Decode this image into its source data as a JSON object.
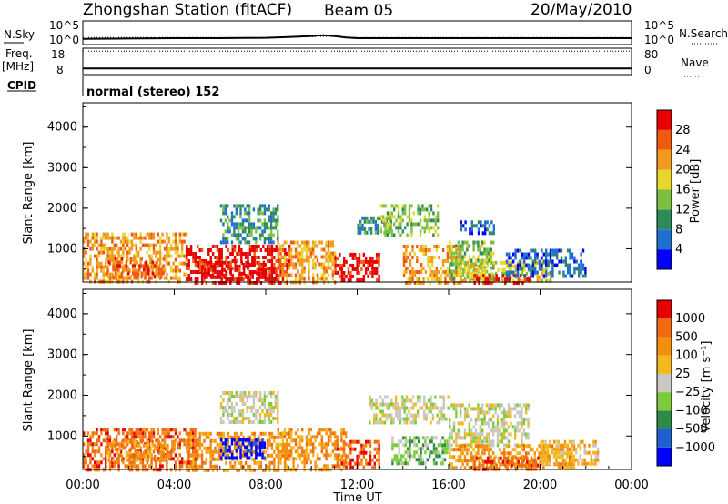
{
  "header": {
    "station": "Zhongshan Station (fitACF)",
    "beam": "Beam 05",
    "date": "20/May/2010"
  },
  "chart_data": [
    {
      "type": "line",
      "name": "noise-panel",
      "left_label": "N.Sky",
      "left_ticks": [
        "10^5",
        "10^0"
      ],
      "right_label": "N.Search",
      "right_ticks": [
        "10^5",
        "10^0"
      ],
      "x": [
        0,
        2,
        4,
        6,
        8,
        9,
        10,
        10.5,
        11,
        11.5,
        12,
        14,
        16,
        18,
        20,
        22,
        24
      ],
      "n_sky_log10": [
        0.8,
        0.9,
        1.0,
        1.0,
        1.1,
        1.3,
        1.6,
        1.8,
        1.6,
        1.2,
        1.0,
        1.0,
        1.0,
        1.0,
        1.0,
        1.0,
        1.0
      ],
      "n_search_log10": [
        1.2,
        1.2,
        1.2,
        1.2,
        1.2,
        1.3,
        1.4,
        1.5,
        1.4,
        1.3,
        1.2,
        1.2,
        1.2,
        1.2,
        1.2,
        1.2,
        1.2
      ]
    },
    {
      "type": "line",
      "name": "freq-nave-panel",
      "left_label": "Freq.",
      "left_unit": "[MHz]",
      "left_ticks": [
        "18",
        "8"
      ],
      "right_label": "Nave",
      "right_ticks": [
        "80",
        "0"
      ],
      "cpid_label": "CPID",
      "cpid_text": "normal (stereo) 152",
      "freq_mhz": 10,
      "nave": 79
    },
    {
      "type": "heatmap",
      "name": "power",
      "ylabel": "Slant Range [km]",
      "xlabel": "",
      "ylim": [
        180,
        4600
      ],
      "yticks": [
        1000,
        2000,
        3000,
        4000
      ],
      "xlim": [
        0,
        24
      ],
      "colorbar_label": "Power [dB]",
      "colorbar_ticks": [
        "4",
        "8",
        "12",
        "16",
        "20",
        "24",
        "28"
      ],
      "colors": [
        "#0000ff",
        "#1e6fd0",
        "#2f8a5a",
        "#7cc043",
        "#e9d62c",
        "#f29a1e",
        "#f05a10",
        "#e60000"
      ],
      "blobs": [
        {
          "t0": 0.0,
          "t1": 4.5,
          "r0": 200,
          "r1": 1400,
          "level": 5
        },
        {
          "t0": 1.0,
          "t1": 3.5,
          "r0": 300,
          "r1": 800,
          "level": 6
        },
        {
          "t0": 4.5,
          "t1": 9.0,
          "r0": 200,
          "r1": 1100,
          "level": 7
        },
        {
          "t0": 5.0,
          "t1": 8.0,
          "r0": 300,
          "r1": 700,
          "level": 7
        },
        {
          "t0": 6.0,
          "t1": 8.5,
          "r0": 1200,
          "r1": 2100,
          "level": 2
        },
        {
          "t0": 8.5,
          "t1": 11.0,
          "r0": 200,
          "r1": 1200,
          "level": 5
        },
        {
          "t0": 11.0,
          "t1": 13.0,
          "r0": 250,
          "r1": 900,
          "level": 7
        },
        {
          "t0": 12.0,
          "t1": 13.5,
          "r0": 1400,
          "r1": 1800,
          "level": 2
        },
        {
          "t0": 13.0,
          "t1": 15.5,
          "r0": 1300,
          "r1": 2100,
          "level": 3
        },
        {
          "t0": 14.0,
          "t1": 16.5,
          "r0": 200,
          "r1": 1100,
          "level": 5
        },
        {
          "t0": 16.0,
          "t1": 18.0,
          "r0": 300,
          "r1": 1200,
          "level": 3
        },
        {
          "t0": 16.5,
          "t1": 20.5,
          "r0": 200,
          "r1": 700,
          "level": 4
        },
        {
          "t0": 17.0,
          "t1": 19.5,
          "r0": 200,
          "r1": 380,
          "level": 7
        },
        {
          "t0": 18.5,
          "t1": 22.0,
          "r0": 300,
          "r1": 1000,
          "level": 1
        },
        {
          "t0": 16.5,
          "t1": 18.0,
          "r0": 1400,
          "r1": 1700,
          "level": 1
        }
      ]
    },
    {
      "type": "heatmap",
      "name": "velocity",
      "ylabel": "Slant Range [km]",
      "xlabel": "Time UT",
      "ylim": [
        180,
        4600
      ],
      "yticks": [
        1000,
        2000,
        3000,
        4000
      ],
      "xlim": [
        0,
        24
      ],
      "xticks": [
        "00:00",
        "04:00",
        "08:00",
        "12:00",
        "16:00",
        "20:00",
        "00:00"
      ],
      "colorbar_label": "Velocity [m s⁻¹]",
      "colorbar_ticks": [
        "1000",
        "500",
        "100",
        "25",
        "−25",
        "−100",
        "−500",
        "−1000"
      ],
      "colors": [
        "#0000ff",
        "#1f5fd0",
        "#2f8a4a",
        "#7ccc3a",
        "#c8c8c0",
        "#f2b81e",
        "#f2900e",
        "#f06a10",
        "#e60000"
      ],
      "blobs": [
        {
          "t0": 0.0,
          "t1": 5.0,
          "r0": 200,
          "r1": 1200,
          "level": 7
        },
        {
          "t0": 1.0,
          "t1": 4.0,
          "r0": 400,
          "r1": 900,
          "level": 6
        },
        {
          "t0": 4.5,
          "t1": 9.0,
          "r0": 200,
          "r1": 1100,
          "level": 6
        },
        {
          "t0": 6.0,
          "t1": 8.0,
          "r0": 500,
          "r1": 950,
          "level": 0
        },
        {
          "t0": 6.0,
          "t1": 8.5,
          "r0": 1300,
          "r1": 2100,
          "level": 4
        },
        {
          "t0": 8.5,
          "t1": 11.5,
          "r0": 200,
          "r1": 1200,
          "level": 6
        },
        {
          "t0": 11.0,
          "t1": 13.0,
          "r0": 250,
          "r1": 900,
          "level": 7
        },
        {
          "t0": 12.5,
          "t1": 16.0,
          "r0": 1300,
          "r1": 2000,
          "level": 4
        },
        {
          "t0": 13.5,
          "t1": 16.0,
          "r0": 300,
          "r1": 1000,
          "level": 3
        },
        {
          "t0": 16.0,
          "t1": 19.5,
          "r0": 800,
          "r1": 1800,
          "level": 4
        },
        {
          "t0": 16.0,
          "t1": 21.5,
          "r0": 200,
          "r1": 800,
          "level": 6
        },
        {
          "t0": 17.0,
          "t1": 20.0,
          "r0": 200,
          "r1": 500,
          "level": 7
        },
        {
          "t0": 20.0,
          "t1": 22.5,
          "r0": 300,
          "r1": 900,
          "level": 5
        }
      ]
    }
  ]
}
